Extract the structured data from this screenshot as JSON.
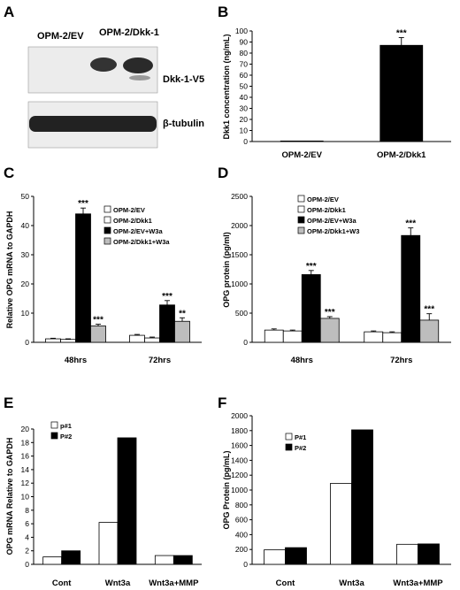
{
  "colors": {
    "white": "#ffffff",
    "black": "#000000",
    "gray": "#bdbdbd"
  },
  "blot": {
    "panel_label": "A",
    "lane_labels": [
      "OPM-2/EV",
      "OPM-2/Dkk-1"
    ],
    "band_labels": [
      "Dkk-1-V5",
      "β-tubulin"
    ]
  },
  "chart_data": [
    {
      "panel": "B",
      "type": "bar",
      "categories": [
        "OPM-2/EV",
        "OPM-2/Dkk1"
      ],
      "series": [
        {
          "values": [
            0.5,
            87
          ],
          "errors": [
            0,
            7
          ],
          "sig": [
            "",
            "***"
          ],
          "color": "#000000"
        }
      ],
      "ylabel": "Dkk1 concentration (ng/mL)",
      "ylim": [
        0,
        100
      ],
      "ticks": [
        0,
        10,
        20,
        30,
        40,
        50,
        60,
        70,
        80,
        90,
        100
      ]
    },
    {
      "panel": "C",
      "type": "bar",
      "categories": [
        "48hrs",
        "72hrs"
      ],
      "series": [
        {
          "name": "OPM-2/EV",
          "values": [
            1.2,
            2.4
          ],
          "errors": [
            0.2,
            0.3
          ],
          "sig": [
            "",
            ""
          ],
          "color": "#ffffff"
        },
        {
          "name": "OPM-2/Dkk1",
          "values": [
            1.0,
            1.5
          ],
          "errors": [
            0.2,
            0.3
          ],
          "sig": [
            "",
            ""
          ],
          "color": "#ffffff"
        },
        {
          "name": "OPM-2/EV+W3a",
          "values": [
            44.0,
            12.8
          ],
          "errors": [
            2.0,
            1.5
          ],
          "sig": [
            "***",
            "***"
          ],
          "color": "#000000"
        },
        {
          "name": "OPM-2/Dkk1+W3a",
          "values": [
            5.6,
            7.2
          ],
          "errors": [
            0.6,
            1.2
          ],
          "sig": [
            "***",
            "**"
          ],
          "color": "#bdbdbd"
        }
      ],
      "ylabel": "Relative OPG mRNA to GAPDH",
      "ylim": [
        0,
        50
      ],
      "ticks": [
        0,
        10,
        20,
        30,
        40,
        50
      ]
    },
    {
      "panel": "D",
      "type": "bar",
      "categories": [
        "48hrs",
        "72hrs"
      ],
      "series": [
        {
          "name": "OPM-2/EV",
          "values": [
            210,
            180
          ],
          "errors": [
            20,
            15
          ],
          "sig": [
            "",
            ""
          ],
          "color": "#ffffff"
        },
        {
          "name": "OPM-2/Dkk1",
          "values": [
            195,
            165
          ],
          "errors": [
            15,
            15
          ],
          "sig": [
            "",
            ""
          ],
          "color": "#ffffff"
        },
        {
          "name": "OPM-2/EV+W3a",
          "values": [
            1160,
            1830
          ],
          "errors": [
            70,
            130
          ],
          "sig": [
            "***",
            "***"
          ],
          "color": "#000000"
        },
        {
          "name": "OPM-2/Dkk1+W3",
          "values": [
            410,
            380
          ],
          "errors": [
            30,
            110
          ],
          "sig": [
            "***",
            "***"
          ],
          "color": "#bdbdbd"
        }
      ],
      "ylabel": "OPG protein (pg/ml)",
      "ylim": [
        0,
        2500
      ],
      "ticks": [
        0,
        500,
        1000,
        1500,
        2000,
        2500
      ]
    },
    {
      "panel": "E",
      "type": "bar",
      "categories": [
        "Cont",
        "Wnt3a",
        "Wnt3a+MMP"
      ],
      "series": [
        {
          "name": "p#1",
          "values": [
            1.1,
            6.2,
            1.3
          ],
          "color": "#ffffff"
        },
        {
          "name": "P#2",
          "values": [
            2.0,
            18.7,
            1.3
          ],
          "color": "#000000"
        }
      ],
      "ylabel": "OPG mRNA Relative to GAPDH",
      "ylim": [
        0,
        20
      ],
      "ticks": [
        0,
        2,
        4,
        6,
        8,
        10,
        12,
        14,
        16,
        18,
        20
      ]
    },
    {
      "panel": "F",
      "type": "bar",
      "categories": [
        "Cont",
        "Wnt3a",
        "Wnt3a+MMP"
      ],
      "series": [
        {
          "name": "P#1",
          "values": [
            195,
            1090,
            270
          ],
          "color": "#ffffff"
        },
        {
          "name": "P#2",
          "values": [
            225,
            1810,
            275
          ],
          "color": "#000000"
        }
      ],
      "ylabel": "OPG Protein (pg/mL)",
      "ylim": [
        0,
        2000
      ],
      "ticks": [
        0,
        200,
        400,
        600,
        800,
        1000,
        1200,
        1400,
        1600,
        1800,
        2000
      ]
    }
  ]
}
